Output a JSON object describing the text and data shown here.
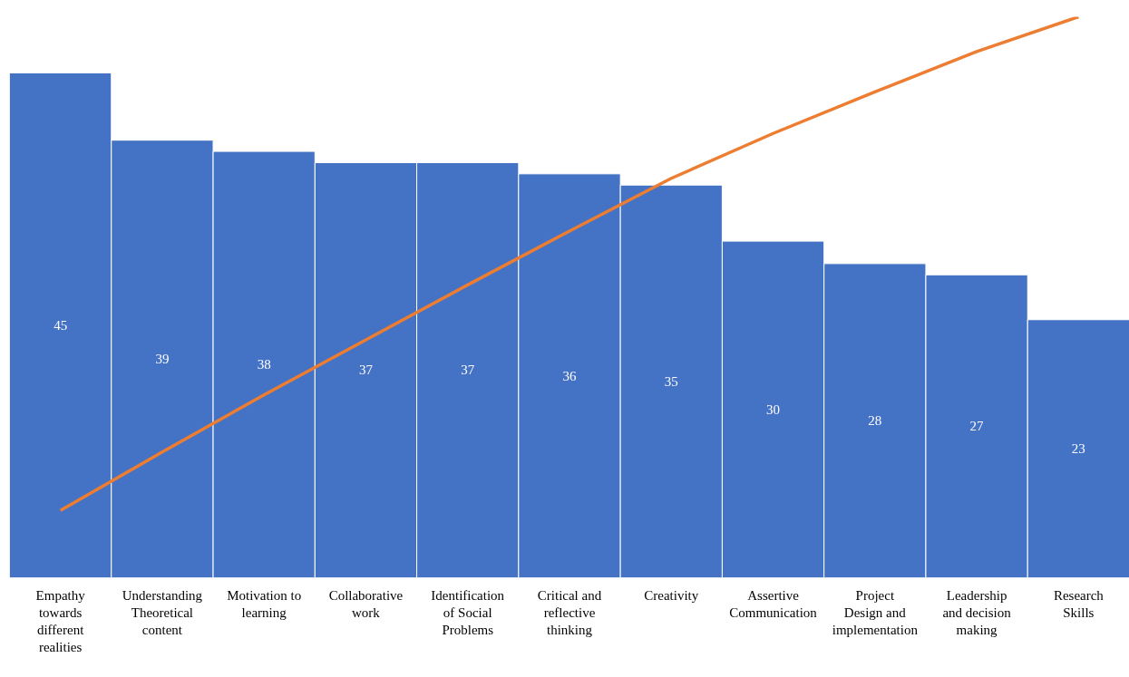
{
  "chart_data": {
    "type": "bar",
    "categories": [
      "Empathy towards different realities",
      "Understanding Theoretical content",
      "Motivation to learning",
      "Collaborative work",
      "Identification of Social Problems",
      "Critical and reflective thinking",
      "Creativity",
      "Assertive Communication",
      "Project Design and implementation",
      "Leadership and decision making",
      "Research Skills"
    ],
    "series": [
      {
        "color": "#4472c4",
        "values": [
          45,
          39,
          38,
          37,
          37,
          36,
          35,
          30,
          28,
          27,
          23
        ],
        "value_labels": [
          "45",
          "39",
          "38",
          "37",
          "37",
          "36",
          "35",
          "30",
          "28",
          "27",
          "23"
        ]
      },
      {
        "type": "line",
        "color": "#ed7d31",
        "values": [
          6.0,
          11.2,
          16.3,
          21.2,
          26.1,
          30.9,
          35.6,
          39.6,
          43.3,
          46.9,
          50.0
        ]
      }
    ],
    "grid": false,
    "tick_labels": "x"
  }
}
